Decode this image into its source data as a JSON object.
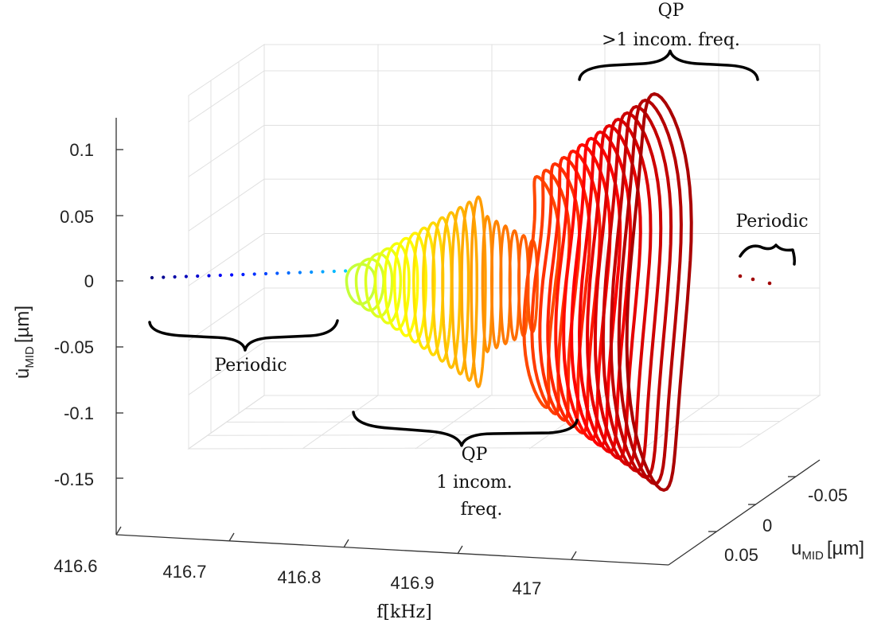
{
  "chart_data": {
    "type": "3d-line",
    "xlabel": "f[kHz]",
    "ylabel_main": "u",
    "ylabel_sub": "MID",
    "ylabel_unit": "[µm]",
    "zlabel_main": "u̇",
    "zlabel_sub": "MID",
    "zlabel_unit": "[µm]",
    "x_ticks": [
      "416.6",
      "416.7",
      "416.8",
      "416.9",
      "417"
    ],
    "y_ticks": [
      "-0.05",
      "0",
      "0.05"
    ],
    "z_ticks": [
      "0.1",
      "0.05",
      "0",
      "-0.05",
      "-0.1",
      "-0.15"
    ],
    "xlim": [
      416.6,
      417.07
    ],
    "ylim": [
      -0.08,
      0.08
    ],
    "zlim": [
      -0.18,
      0.12
    ],
    "grid": true,
    "colormap": "jet",
    "regions": [
      {
        "label": "Periodic",
        "f_range": [
          416.6,
          416.78
        ]
      },
      {
        "label_lines": [
          "QP",
          "1 incom.",
          "freq."
        ],
        "f_range": [
          416.79,
          416.98
        ]
      },
      {
        "label_lines": [
          "QP",
          ">1 incom. freq."
        ],
        "f_range": [
          416.98,
          417.05
        ]
      },
      {
        "label": "Periodic",
        "f_range": [
          417.05,
          417.07
        ]
      }
    ]
  },
  "annotations": {
    "periodic_left": "Periodic",
    "qp1_line1": "QP",
    "qp1_line2": "1 incom.",
    "qp1_line3": "freq.",
    "qp2_line1": "QP",
    "qp2_line2": ">1 incom. freq.",
    "periodic_right": "Periodic"
  }
}
